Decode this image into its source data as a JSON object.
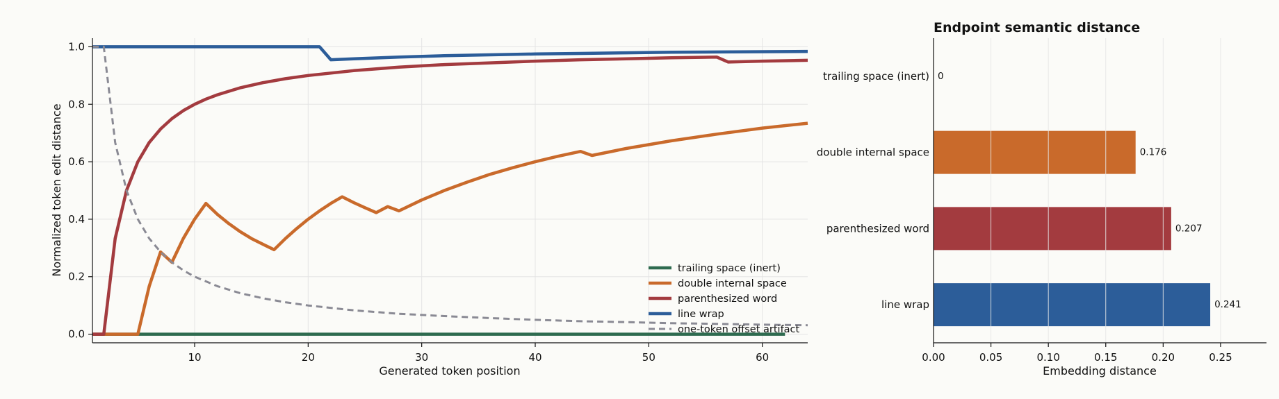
{
  "chart_data": [
    {
      "type": "line",
      "title": "",
      "xlabel": "Generated token position",
      "ylabel": "Normalized token edit distance",
      "xlim": [
        1,
        64
      ],
      "ylim": [
        -0.03,
        1.03
      ],
      "xticks": [
        10,
        20,
        30,
        40,
        50,
        60
      ],
      "yticks": [
        0.0,
        0.2,
        0.4,
        0.6,
        0.8,
        1.0
      ],
      "grid": true,
      "legend_position": "bottom-right",
      "series": [
        {
          "name": "trailing space (inert)",
          "color": "#2e6b4f",
          "style": "solid",
          "points": [
            [
              1,
              0.0
            ],
            [
              62,
              0.0
            ]
          ]
        },
        {
          "name": "double internal space",
          "color": "#c96a2b",
          "style": "solid",
          "points": [
            [
              1,
              0.0
            ],
            [
              5,
              0.0
            ],
            [
              6,
              0.167
            ],
            [
              7,
              0.286
            ],
            [
              8,
              0.25
            ],
            [
              9,
              0.333
            ],
            [
              10,
              0.4
            ],
            [
              11,
              0.455
            ],
            [
              12,
              0.417
            ],
            [
              13,
              0.385
            ],
            [
              14,
              0.357
            ],
            [
              15,
              0.333
            ],
            [
              16,
              0.313
            ],
            [
              17,
              0.294
            ],
            [
              18,
              0.333
            ],
            [
              19,
              0.368
            ],
            [
              20,
              0.4
            ],
            [
              21,
              0.429
            ],
            [
              22,
              0.455
            ],
            [
              23,
              0.478
            ],
            [
              24,
              0.458
            ],
            [
              25,
              0.44
            ],
            [
              26,
              0.423
            ],
            [
              27,
              0.444
            ],
            [
              28,
              0.429
            ],
            [
              30,
              0.467
            ],
            [
              32,
              0.5
            ],
            [
              34,
              0.529
            ],
            [
              36,
              0.556
            ],
            [
              38,
              0.579
            ],
            [
              40,
              0.6
            ],
            [
              42,
              0.619
            ],
            [
              44,
              0.636
            ],
            [
              45,
              0.622
            ],
            [
              48,
              0.646
            ],
            [
              52,
              0.673
            ],
            [
              56,
              0.696
            ],
            [
              60,
              0.717
            ],
            [
              64,
              0.734
            ]
          ]
        },
        {
          "name": "parenthesized word",
          "color": "#a33b3f",
          "style": "solid",
          "points": [
            [
              1,
              0.0
            ],
            [
              2,
              0.0
            ],
            [
              3,
              0.333
            ],
            [
              4,
              0.5
            ],
            [
              5,
              0.6
            ],
            [
              6,
              0.667
            ],
            [
              7,
              0.714
            ],
            [
              8,
              0.75
            ],
            [
              9,
              0.778
            ],
            [
              10,
              0.8
            ],
            [
              11,
              0.818
            ],
            [
              12,
              0.833
            ],
            [
              14,
              0.857
            ],
            [
              16,
              0.875
            ],
            [
              18,
              0.889
            ],
            [
              20,
              0.9
            ],
            [
              24,
              0.917
            ],
            [
              28,
              0.929
            ],
            [
              32,
              0.938
            ],
            [
              36,
              0.944
            ],
            [
              40,
              0.95
            ],
            [
              44,
              0.955
            ],
            [
              48,
              0.958
            ],
            [
              52,
              0.962
            ],
            [
              56,
              0.964
            ],
            [
              57,
              0.947
            ],
            [
              60,
              0.95
            ],
            [
              64,
              0.953
            ]
          ]
        },
        {
          "name": "line wrap",
          "color": "#2c5d99",
          "style": "solid",
          "points": [
            [
              1,
              1.0
            ],
            [
              21,
              1.0
            ],
            [
              22,
              0.955
            ],
            [
              24,
              0.958
            ],
            [
              28,
              0.964
            ],
            [
              32,
              0.969
            ],
            [
              36,
              0.972
            ],
            [
              40,
              0.975
            ],
            [
              44,
              0.977
            ],
            [
              48,
              0.979
            ],
            [
              52,
              0.981
            ],
            [
              56,
              0.982
            ],
            [
              60,
              0.983
            ],
            [
              64,
              0.984
            ]
          ]
        },
        {
          "name": "one-token offset artifact",
          "color": "#8a8a94",
          "style": "dashed",
          "points": [
            [
              1,
              1.0
            ],
            [
              2,
              1.0
            ],
            [
              3,
              0.667
            ],
            [
              4,
              0.5
            ],
            [
              5,
              0.4
            ],
            [
              6,
              0.333
            ],
            [
              7,
              0.286
            ],
            [
              8,
              0.25
            ],
            [
              9,
              0.222
            ],
            [
              10,
              0.2
            ],
            [
              12,
              0.167
            ],
            [
              14,
              0.143
            ],
            [
              16,
              0.125
            ],
            [
              18,
              0.111
            ],
            [
              20,
              0.1
            ],
            [
              24,
              0.083
            ],
            [
              28,
              0.071
            ],
            [
              32,
              0.063
            ],
            [
              36,
              0.056
            ],
            [
              40,
              0.05
            ],
            [
              44,
              0.045
            ],
            [
              48,
              0.042
            ],
            [
              52,
              0.038
            ],
            [
              56,
              0.036
            ],
            [
              60,
              0.033
            ],
            [
              64,
              0.031
            ]
          ]
        }
      ]
    },
    {
      "type": "bar",
      "orientation": "horizontal",
      "title": "Endpoint semantic distance",
      "xlabel": "Embedding distance",
      "ylabel": "",
      "xlim": [
        0,
        0.29
      ],
      "xticks": [
        "0.00",
        "0.05",
        "0.10",
        "0.15",
        "0.20",
        "0.25"
      ],
      "grid": true,
      "categories": [
        "trailing space (inert)",
        "double internal space",
        "parenthesized word",
        "line wrap"
      ],
      "values": [
        0,
        0.176,
        0.207,
        0.241
      ],
      "value_labels": [
        "0",
        "0.176",
        "0.207",
        "0.241"
      ],
      "colors": [
        "#2e6b4f",
        "#c96a2b",
        "#a33b3f",
        "#2c5d99"
      ]
    }
  ]
}
